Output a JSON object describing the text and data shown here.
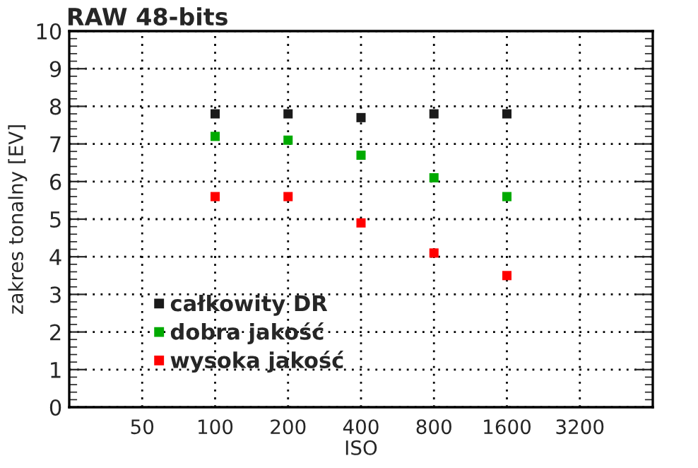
{
  "chart_data": {
    "type": "scatter",
    "title": "RAW 48-bits",
    "xlabel": "ISO",
    "ylabel": "zakres tonalny [EV]",
    "x": [
      100,
      200,
      400,
      800,
      1600
    ],
    "log": "x",
    "series": [
      {
        "name": "całkowity DR",
        "color": "#1a1a1a",
        "values": [
          7.8,
          7.8,
          7.7,
          7.8,
          7.8
        ]
      },
      {
        "name": "dobra jakość",
        "color": "#00aa00",
        "values": [
          7.2,
          7.1,
          6.7,
          6.1,
          5.6
        ]
      },
      {
        "name": "wysoka jakość",
        "color": "#ff0000",
        "values": [
          5.6,
          5.6,
          4.9,
          4.1,
          3.5
        ]
      }
    ],
    "xlim": [
      25,
      6400
    ],
    "xticks": [
      50,
      100,
      200,
      400,
      800,
      1600,
      3200
    ],
    "ylim": [
      0,
      10
    ],
    "yticks": [
      0,
      1,
      2,
      3,
      4,
      5,
      6,
      7,
      8,
      9,
      10
    ],
    "grid": true,
    "legend": "bottom left",
    "marker": "square"
  }
}
